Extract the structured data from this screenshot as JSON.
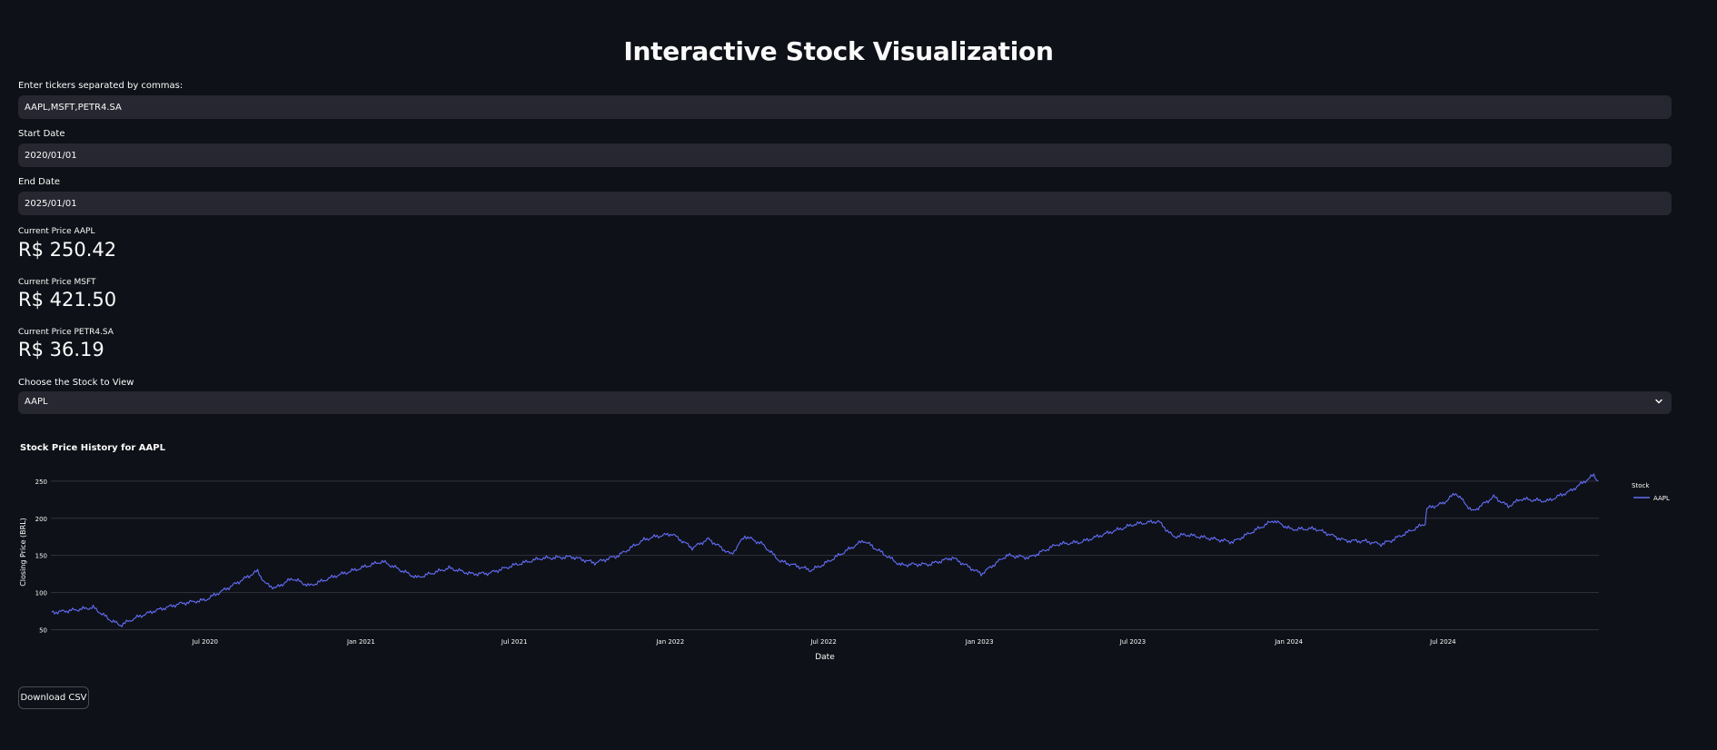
{
  "page": {
    "title": "Interactive Stock Visualization"
  },
  "inputs": {
    "tickers": {
      "label": "Enter tickers separated by commas:",
      "value": "AAPL,MSFT,PETR4.SA"
    },
    "start_date": {
      "label": "Start Date",
      "value": "2020/01/01"
    },
    "end_date": {
      "label": "End Date",
      "value": "2025/01/01"
    }
  },
  "metrics": [
    {
      "label": "Current Price AAPL",
      "value": "R$ 250.42"
    },
    {
      "label": "Current Price MSFT",
      "value": "R$ 421.50"
    },
    {
      "label": "Current Price PETR4.SA",
      "value": "R$ 36.19"
    }
  ],
  "stock_select": {
    "label": "Choose the Stock to View",
    "value": "AAPL"
  },
  "chart_title": "Stock Price History for AAPL",
  "download_label": "Download CSV",
  "icons": {
    "select": "chevron-down-icon"
  },
  "colors": {
    "line": "#636efa",
    "background": "#0e1117",
    "input": "#262730"
  },
  "chart_data": {
    "type": "line",
    "title": "Stock Price History for AAPL",
    "xlabel": "Date",
    "ylabel": "Closing Price (BRL)",
    "ylim": [
      47,
      262
    ],
    "xlim": [
      "2020-01-01",
      "2025-01-01"
    ],
    "yticks": [
      "50",
      "100",
      "150",
      "200",
      "250"
    ],
    "xticks": [
      "Jul 2020",
      "Jan 2021",
      "Jul 2021",
      "Jan 2022",
      "Jul 2022",
      "Jan 2023",
      "Jul 2023",
      "Jan 2024",
      "Jul 2024"
    ],
    "xtick_dates": [
      "2020-07-01",
      "2021-01-01",
      "2021-07-01",
      "2022-01-01",
      "2022-07-01",
      "2023-01-01",
      "2023-07-01",
      "2024-01-01",
      "2024-07-01"
    ],
    "grid": true,
    "legend_title": "Stock",
    "legend_position": "top-right",
    "series": [
      {
        "name": "AAPL",
        "x": [
          "2020-01-02",
          "2020-02-01",
          "2020-02-20",
          "2020-03-10",
          "2020-03-23",
          "2020-04-10",
          "2020-05-01",
          "2020-06-01",
          "2020-07-01",
          "2020-07-31",
          "2020-09-01",
          "2020-09-10",
          "2020-09-22",
          "2020-10-12",
          "2020-11-01",
          "2020-12-01",
          "2021-01-26",
          "2021-03-08",
          "2021-04-15",
          "2021-05-12",
          "2021-06-01",
          "2021-07-01",
          "2021-08-01",
          "2021-09-07",
          "2021-10-04",
          "2021-11-01",
          "2021-12-01",
          "2021-12-13",
          "2022-01-03",
          "2022-01-27",
          "2022-02-15",
          "2022-03-14",
          "2022-03-30",
          "2022-04-20",
          "2022-05-11",
          "2022-05-27",
          "2022-06-16",
          "2022-07-01",
          "2022-08-17",
          "2022-09-30",
          "2022-10-13",
          "2022-11-03",
          "2022-11-30",
          "2023-01-03",
          "2023-02-02",
          "2023-03-01",
          "2023-04-03",
          "2023-05-01",
          "2023-06-01",
          "2023-07-03",
          "2023-07-31",
          "2023-08-18",
          "2023-09-01",
          "2023-10-05",
          "2023-10-27",
          "2023-12-01",
          "2023-12-14",
          "2024-01-04",
          "2024-02-01",
          "2024-03-07",
          "2024-04-01",
          "2024-04-19",
          "2024-05-01",
          "2024-06-10",
          "2024-06-12",
          "2024-07-01",
          "2024-07-16",
          "2024-08-05",
          "2024-08-30",
          "2024-09-16",
          "2024-10-01",
          "2024-11-01",
          "2024-11-29",
          "2024-12-26",
          "2024-12-31"
        ],
        "y": [
          73,
          77,
          80,
          64,
          56,
          66,
          75,
          85,
          90,
          108,
          129,
          112,
          106,
          119,
          109,
          122,
          142,
          120,
          133,
          125,
          126,
          137,
          146,
          148,
          140,
          150,
          171,
          175,
          179,
          160,
          172,
          151,
          176,
          165,
          142,
          137,
          130,
          138,
          170,
          137,
          138,
          138,
          147,
          125,
          150,
          147,
          165,
          168,
          180,
          192,
          196,
          175,
          178,
          172,
          168,
          189,
          197,
          185,
          186,
          170,
          169,
          165,
          170,
          193,
          213,
          220,
          234,
          209,
          229,
          216,
          226,
          223,
          237,
          258,
          250
        ]
      }
    ]
  }
}
